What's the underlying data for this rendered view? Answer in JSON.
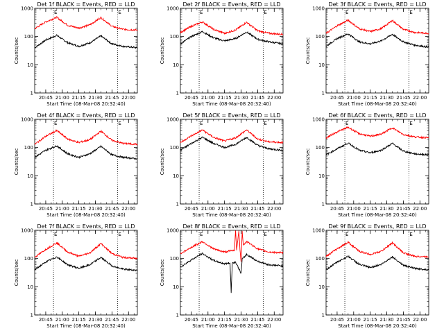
{
  "chart_data": [
    {
      "type": "line",
      "title": "Det 1f BLACK = Events, RED = LLD",
      "xlabel": "Start Time (08-Mar-08 20:32:40)",
      "ylabel": "Counts/sec",
      "yscale": "log",
      "ylim": [
        1,
        1000
      ],
      "xlim": [
        "20:35",
        "22:08"
      ],
      "x_tick_labels": [
        "20:45",
        "21:00",
        "21:15",
        "21:30",
        "21:45",
        "22:00"
      ],
      "y_tick_labels": [
        "1",
        "10",
        "100",
        "1000"
      ],
      "markers": [
        {
          "time": "20:52",
          "label": "E"
        },
        {
          "time": "21:50",
          "label": "E"
        }
      ],
      "series": [
        {
          "name": "Events",
          "color": "#000000",
          "x": [
            "20:35",
            "20:45",
            "20:55",
            "21:05",
            "21:15",
            "21:25",
            "21:35",
            "21:45",
            "21:55",
            "22:08"
          ],
          "y": [
            40,
            75,
            110,
            60,
            45,
            60,
            105,
            55,
            45,
            40
          ]
        },
        {
          "name": "LLD",
          "color": "#ff0000",
          "x": [
            "20:35",
            "20:45",
            "20:55",
            "21:05",
            "21:15",
            "21:25",
            "21:35",
            "21:45",
            "21:55",
            "22:08"
          ],
          "y": [
            190,
            330,
            480,
            250,
            200,
            260,
            470,
            230,
            180,
            170
          ]
        }
      ]
    },
    {
      "type": "line",
      "title": "Det 2f BLACK = Events, RED = LLD",
      "xlabel": "Start Time (08-Mar-08 20:32:40)",
      "ylabel": "Counts/sec",
      "yscale": "log",
      "ylim": [
        1,
        1000
      ],
      "xlim": [
        "20:35",
        "22:08"
      ],
      "x_tick_labels": [
        "20:45",
        "21:00",
        "21:15",
        "21:30",
        "21:45",
        "22:00"
      ],
      "y_tick_labels": [
        "1",
        "10",
        "100",
        "1000"
      ],
      "markers": [
        {
          "time": "20:52",
          "label": "E"
        },
        {
          "time": "21:50",
          "label": "E"
        }
      ],
      "series": [
        {
          "name": "Events",
          "color": "#000000",
          "x": [
            "20:35",
            "20:45",
            "20:55",
            "21:05",
            "21:15",
            "21:25",
            "21:35",
            "21:45",
            "21:55",
            "22:08"
          ],
          "y": [
            55,
            100,
            150,
            90,
            70,
            85,
            145,
            80,
            65,
            55
          ]
        },
        {
          "name": "LLD",
          "color": "#ff0000",
          "x": [
            "20:35",
            "20:45",
            "20:55",
            "21:05",
            "21:15",
            "21:25",
            "21:35",
            "21:45",
            "21:55",
            "22:08"
          ],
          "y": [
            140,
            230,
            330,
            180,
            130,
            170,
            320,
            160,
            130,
            120
          ]
        }
      ]
    },
    {
      "type": "line",
      "title": "Det 3f BLACK = Events, RED = LLD",
      "xlabel": "Start Time (08-Mar-08 20:32:40)",
      "ylabel": "Counts/sec",
      "yscale": "log",
      "ylim": [
        1,
        1000
      ],
      "xlim": [
        "20:35",
        "22:08"
      ],
      "x_tick_labels": [
        "20:45",
        "21:00",
        "21:15",
        "21:30",
        "21:45",
        "22:00"
      ],
      "y_tick_labels": [
        "1",
        "10",
        "100",
        "1000"
      ],
      "markers": [
        {
          "time": "20:52",
          "label": "E"
        },
        {
          "time": "21:50",
          "label": "E"
        }
      ],
      "series": [
        {
          "name": "Events",
          "color": "#000000",
          "x": [
            "20:35",
            "20:45",
            "20:55",
            "21:05",
            "21:15",
            "21:25",
            "21:35",
            "21:45",
            "21:55",
            "22:08"
          ],
          "y": [
            45,
            85,
            125,
            65,
            55,
            70,
            120,
            65,
            50,
            42
          ]
        },
        {
          "name": "LLD",
          "color": "#ff0000",
          "x": [
            "20:35",
            "20:45",
            "20:55",
            "21:05",
            "21:15",
            "21:25",
            "21:35",
            "21:45",
            "21:55",
            "22:08"
          ],
          "y": [
            130,
            240,
            380,
            190,
            150,
            190,
            370,
            180,
            140,
            130
          ]
        }
      ]
    },
    {
      "type": "line",
      "title": "Det 4f BLACK = Events, RED = LLD",
      "xlabel": "Start Time (08-Mar-08 20:32:40)",
      "ylabel": "Counts/sec",
      "yscale": "log",
      "ylim": [
        1,
        1000
      ],
      "xlim": [
        "20:35",
        "22:08"
      ],
      "x_tick_labels": [
        "20:45",
        "21:00",
        "21:15",
        "21:30",
        "21:45",
        "22:00"
      ],
      "y_tick_labels": [
        "1",
        "10",
        "100",
        "1000"
      ],
      "markers": [
        {
          "time": "20:52",
          "label": "E"
        },
        {
          "time": "21:50",
          "label": "E"
        }
      ],
      "series": [
        {
          "name": "Events",
          "color": "#000000",
          "x": [
            "20:35",
            "20:45",
            "20:55",
            "21:05",
            "21:15",
            "21:25",
            "21:35",
            "21:45",
            "21:55",
            "22:08"
          ],
          "y": [
            45,
            80,
            115,
            60,
            45,
            60,
            110,
            55,
            45,
            40
          ]
        },
        {
          "name": "LLD",
          "color": "#ff0000",
          "x": [
            "20:35",
            "20:45",
            "20:55",
            "21:05",
            "21:15",
            "21:25",
            "21:35",
            "21:45",
            "21:55",
            "22:08"
          ],
          "y": [
            130,
            250,
            400,
            200,
            150,
            190,
            380,
            180,
            140,
            130
          ]
        }
      ]
    },
    {
      "type": "line",
      "title": "Det 5f BLACK = Events, RED = LLD",
      "xlabel": "Start Time (08-Mar-08 20:32:40)",
      "ylabel": "Counts/sec",
      "yscale": "log",
      "ylim": [
        1,
        1000
      ],
      "xlim": [
        "20:35",
        "22:08"
      ],
      "x_tick_labels": [
        "20:45",
        "21:00",
        "21:15",
        "21:30",
        "21:45",
        "22:00"
      ],
      "y_tick_labels": [
        "1",
        "10",
        "100",
        "1000"
      ],
      "markers": [
        {
          "time": "20:52",
          "label": "E"
        },
        {
          "time": "21:50",
          "label": "E"
        }
      ],
      "series": [
        {
          "name": "Events",
          "color": "#000000",
          "x": [
            "20:35",
            "20:45",
            "20:55",
            "21:05",
            "21:15",
            "21:25",
            "21:35",
            "21:45",
            "21:55",
            "22:08"
          ],
          "y": [
            80,
            140,
            230,
            140,
            100,
            130,
            230,
            120,
            90,
            80
          ]
        },
        {
          "name": "LLD",
          "color": "#ff0000",
          "x": [
            "20:35",
            "20:45",
            "20:55",
            "21:05",
            "21:15",
            "21:25",
            "21:35",
            "21:45",
            "21:55",
            "22:08"
          ],
          "y": [
            150,
            260,
            420,
            230,
            170,
            220,
            420,
            200,
            160,
            150
          ]
        }
      ]
    },
    {
      "type": "line",
      "title": "Det 6f BLACK = Events, RED = LLD",
      "xlabel": "Start Time (08-Mar-08 20:32:40)",
      "ylabel": "Counts/sec",
      "yscale": "log",
      "ylim": [
        1,
        1000
      ],
      "xlim": [
        "20:35",
        "22:08"
      ],
      "x_tick_labels": [
        "20:45",
        "21:00",
        "21:15",
        "21:30",
        "21:45",
        "22:00"
      ],
      "y_tick_labels": [
        "1",
        "10",
        "100",
        "1000"
      ],
      "markers": [
        {
          "time": "20:52",
          "label": "E"
        },
        {
          "time": "21:50",
          "label": "E"
        }
      ],
      "series": [
        {
          "name": "Events",
          "color": "#000000",
          "x": [
            "20:35",
            "20:45",
            "20:55",
            "21:05",
            "21:15",
            "21:25",
            "21:35",
            "21:45",
            "21:55",
            "22:08"
          ],
          "y": [
            55,
            90,
            145,
            80,
            65,
            80,
            140,
            75,
            60,
            55
          ]
        },
        {
          "name": "LLD",
          "color": "#ff0000",
          "x": [
            "20:35",
            "20:45",
            "20:55",
            "21:05",
            "21:15",
            "21:25",
            "21:35",
            "21:45",
            "21:55",
            "22:08"
          ],
          "y": [
            220,
            360,
            520,
            310,
            250,
            300,
            500,
            290,
            240,
            220
          ]
        }
      ]
    },
    {
      "type": "line",
      "title": "Det 7f BLACK = Events, RED = LLD",
      "xlabel": "Start Time (08-Mar-08 20:32:40)",
      "ylabel": "Counts/sec",
      "yscale": "log",
      "ylim": [
        1,
        1000
      ],
      "xlim": [
        "20:35",
        "22:08"
      ],
      "x_tick_labels": [
        "20:45",
        "21:00",
        "21:15",
        "21:30",
        "21:45",
        "22:00"
      ],
      "y_tick_labels": [
        "1",
        "10",
        "100",
        "1000"
      ],
      "markers": [
        {
          "time": "20:52",
          "label": "E"
        },
        {
          "time": "21:50",
          "label": "E"
        }
      ],
      "series": [
        {
          "name": "Events",
          "color": "#000000",
          "x": [
            "20:35",
            "20:45",
            "20:55",
            "21:05",
            "21:15",
            "21:25",
            "21:35",
            "21:45",
            "21:55",
            "22:08"
          ],
          "y": [
            40,
            75,
            115,
            60,
            45,
            60,
            110,
            55,
            42,
            38
          ]
        },
        {
          "name": "LLD",
          "color": "#ff0000",
          "x": [
            "20:35",
            "20:45",
            "20:55",
            "21:05",
            "21:15",
            "21:25",
            "21:35",
            "21:45",
            "21:55",
            "22:08"
          ],
          "y": [
            110,
            210,
            360,
            170,
            120,
            160,
            340,
            150,
            110,
            100
          ]
        }
      ]
    },
    {
      "type": "line",
      "title": "Det 8f BLACK = Events, RED = LLD",
      "xlabel": "Start Time (08-Mar-08 20:32:40)",
      "ylabel": "Counts/sec",
      "yscale": "log",
      "ylim": [
        1,
        1000
      ],
      "xlim": [
        "20:35",
        "22:08"
      ],
      "x_tick_labels": [
        "20:45",
        "21:00",
        "21:15",
        "21:30",
        "21:45",
        "22:00"
      ],
      "y_tick_labels": [
        "1",
        "10",
        "100",
        "1000"
      ],
      "markers": [
        {
          "time": "20:52",
          "label": "E"
        },
        {
          "time": "21:50",
          "label": "E"
        }
      ],
      "series": [
        {
          "name": "Events",
          "color": "#000000",
          "x": [
            "20:35",
            "20:45",
            "20:55",
            "21:05",
            "21:15",
            "21:20",
            "21:21",
            "21:22",
            "21:25",
            "21:30",
            "21:31",
            "21:35",
            "21:45",
            "21:55",
            "22:08"
          ],
          "y": [
            50,
            90,
            150,
            85,
            65,
            70,
            6,
            70,
            75,
            30,
            95,
            140,
            80,
            60,
            55
          ]
        },
        {
          "name": "LLD",
          "color": "#ff0000",
          "x": [
            "20:35",
            "20:45",
            "20:55",
            "21:05",
            "21:15",
            "21:24",
            "21:25",
            "21:26",
            "21:28",
            "21:29",
            "21:30",
            "21:31",
            "21:32",
            "21:35",
            "21:45",
            "21:55",
            "22:08"
          ],
          "y": [
            150,
            250,
            400,
            220,
            170,
            200,
            1000,
            200,
            1000,
            190,
            80,
            1000,
            300,
            400,
            220,
            170,
            160
          ]
        }
      ]
    },
    {
      "type": "line",
      "title": "Det 9f BLACK = Events, RED = LLD",
      "xlabel": "Start Time (08-Mar-08 20:32:40)",
      "ylabel": "Counts/sec",
      "yscale": "log",
      "ylim": [
        1,
        1000
      ],
      "xlim": [
        "20:35",
        "22:08"
      ],
      "x_tick_labels": [
        "20:45",
        "21:00",
        "21:15",
        "21:30",
        "21:45",
        "22:00"
      ],
      "y_tick_labels": [
        "1",
        "10",
        "100",
        "1000"
      ],
      "markers": [
        {
          "time": "20:52",
          "label": "E"
        },
        {
          "time": "21:50",
          "label": "E"
        }
      ],
      "series": [
        {
          "name": "Events",
          "color": "#000000",
          "x": [
            "20:35",
            "20:45",
            "20:55",
            "21:05",
            "21:15",
            "21:25",
            "21:35",
            "21:45",
            "21:55",
            "22:08"
          ],
          "y": [
            40,
            75,
            120,
            62,
            48,
            62,
            115,
            58,
            45,
            40
          ]
        },
        {
          "name": "LLD",
          "color": "#ff0000",
          "x": [
            "20:35",
            "20:45",
            "20:55",
            "21:05",
            "21:15",
            "21:25",
            "21:35",
            "21:45",
            "21:55",
            "22:08"
          ],
          "y": [
            120,
            220,
            380,
            180,
            140,
            180,
            360,
            160,
            120,
            115
          ]
        }
      ]
    }
  ]
}
